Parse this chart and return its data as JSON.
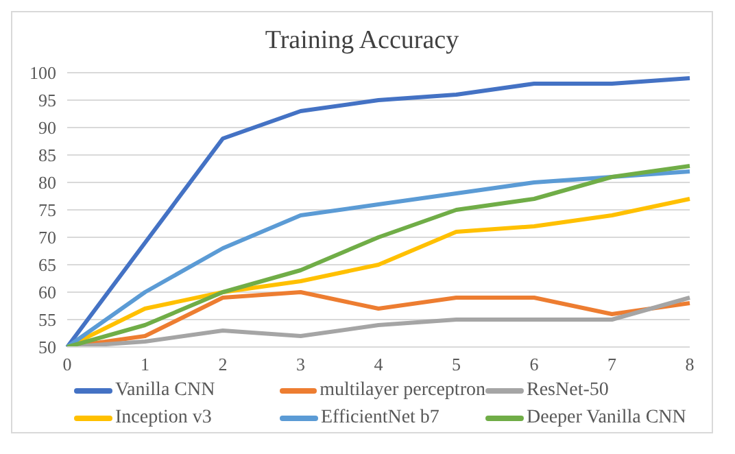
{
  "chart_data": {
    "type": "line",
    "title": "Training Accuracy",
    "categories": [
      "0",
      "1",
      "2",
      "3",
      "4",
      "5",
      "6",
      "7",
      "8"
    ],
    "series": [
      {
        "name": "Vanilla CNN",
        "color": "#4472c4",
        "values": [
          50,
          69,
          88,
          93,
          95,
          96,
          98,
          98,
          99
        ]
      },
      {
        "name": "multilayer perceptron",
        "color": "#ed7d31",
        "values": [
          50,
          52,
          59,
          60,
          57,
          59,
          59,
          56,
          58
        ]
      },
      {
        "name": "ResNet-50",
        "color": "#a5a5a5",
        "values": [
          50,
          51,
          53,
          52,
          54,
          55,
          55,
          55,
          59
        ]
      },
      {
        "name": "Inception v3",
        "color": "#ffc000",
        "values": [
          50,
          57,
          60,
          62,
          65,
          71,
          72,
          74,
          77
        ]
      },
      {
        "name": "EfficientNet b7",
        "color": "#5b9bd5",
        "values": [
          50,
          60,
          68,
          74,
          76,
          78,
          80,
          81,
          82
        ]
      },
      {
        "name": "Deeper Vanilla CNN",
        "color": "#70ad47",
        "values": [
          50,
          54,
          60,
          64,
          70,
          75,
          77,
          81,
          83
        ]
      }
    ],
    "ylim": [
      50,
      100
    ],
    "yticks": [
      50,
      55,
      60,
      65,
      70,
      75,
      80,
      85,
      90,
      95,
      100
    ],
    "grid": "y",
    "legend": "bottom",
    "marker": "none",
    "line_style": "solid"
  }
}
